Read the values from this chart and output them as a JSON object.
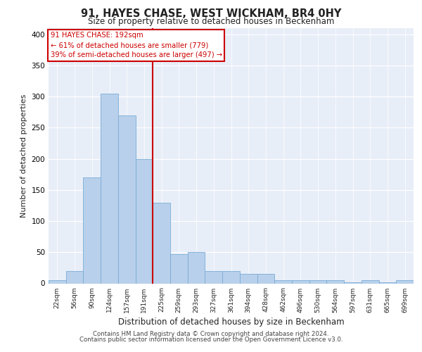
{
  "title1": "91, HAYES CHASE, WEST WICKHAM, BR4 0HY",
  "title2": "Size of property relative to detached houses in Beckenham",
  "xlabel": "Distribution of detached houses by size in Beckenham",
  "ylabel": "Number of detached properties",
  "bar_labels": [
    "22sqm",
    "56sqm",
    "90sqm",
    "124sqm",
    "157sqm",
    "191sqm",
    "225sqm",
    "259sqm",
    "293sqm",
    "327sqm",
    "361sqm",
    "394sqm",
    "428sqm",
    "462sqm",
    "496sqm",
    "530sqm",
    "564sqm",
    "597sqm",
    "631sqm",
    "665sqm",
    "699sqm"
  ],
  "bar_values": [
    5,
    20,
    170,
    305,
    270,
    200,
    130,
    47,
    50,
    20,
    20,
    15,
    15,
    5,
    5,
    5,
    5,
    2,
    5,
    2,
    5
  ],
  "bar_color": "#b8d0eb",
  "bar_edgecolor": "#7aacd6",
  "property_label": "91 HAYES CHASE: 192sqm",
  "annotation_line1": "← 61% of detached houses are smaller (779)",
  "annotation_line2": "39% of semi-detached houses are larger (497) →",
  "vline_color": "#cc0000",
  "vline_x_bin": 5.5,
  "plot_bg_color": "#e8eef8",
  "ylim": [
    0,
    410
  ],
  "yticks": [
    0,
    50,
    100,
    150,
    200,
    250,
    300,
    350,
    400
  ],
  "footer1": "Contains HM Land Registry data © Crown copyright and database right 2024.",
  "footer2": "Contains public sector information licensed under the Open Government Licence v3.0."
}
